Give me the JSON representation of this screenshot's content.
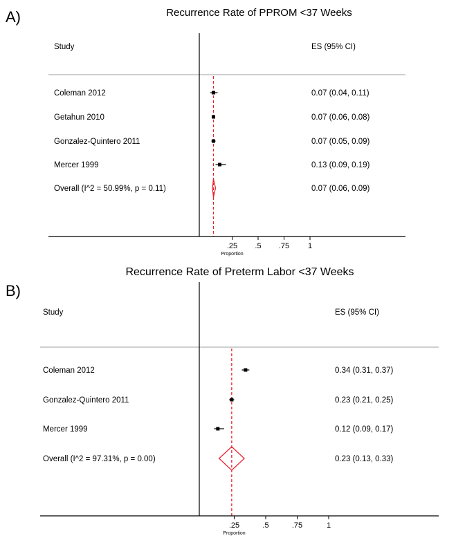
{
  "chart_data": [
    {
      "type": "forest",
      "panel_label": "A)",
      "title": "Recurrence Rate of PPROM <37 Weeks",
      "study_header": "Study",
      "es_header": "ES (95% CI)",
      "xlabel": "Proportion",
      "xticks": [
        ".25",
        ".5",
        ".75",
        "1"
      ],
      "xtick_values": [
        0.25,
        0.5,
        0.75,
        1.0
      ],
      "xlim": [
        -0.05,
        1.05
      ],
      "overall_line": 0.07,
      "studies": [
        {
          "name": "Coleman 2012",
          "es": 0.07,
          "lo": 0.04,
          "hi": 0.11,
          "label": "0.07 (0.04, 0.11)"
        },
        {
          "name": "Getahun 2010",
          "es": 0.07,
          "lo": 0.06,
          "hi": 0.08,
          "label": "0.07 (0.06, 0.08)"
        },
        {
          "name": "Gonzalez-Quintero 2011",
          "es": 0.07,
          "lo": 0.05,
          "hi": 0.09,
          "label": "0.07 (0.05, 0.09)"
        },
        {
          "name": "Mercer 1999",
          "es": 0.13,
          "lo": 0.09,
          "hi": 0.19,
          "label": "0.13 (0.09, 0.19)"
        }
      ],
      "overall": {
        "name": "Overall  (I^2 = 50.99%, p = 0.11)",
        "es": 0.07,
        "lo": 0.06,
        "hi": 0.09,
        "label": "0.07 (0.06, 0.09)"
      },
      "colors": {
        "overall": "#e8202a",
        "marker": "#000000",
        "rule": "#bfbfbf"
      }
    },
    {
      "type": "forest",
      "panel_label": "B)",
      "title": "Recurrence Rate of Preterm Labor <37 Weeks",
      "study_header": "Study",
      "es_header": "ES (95% CI)",
      "xlabel": "Proportion",
      "xticks": [
        ".25",
        ".5",
        ".75",
        "1"
      ],
      "xtick_values": [
        0.25,
        0.5,
        0.75,
        1.0
      ],
      "xlim": [
        -0.05,
        1.05
      ],
      "overall_line": 0.23,
      "studies": [
        {
          "name": "Coleman 2012",
          "es": 0.34,
          "lo": 0.31,
          "hi": 0.37,
          "label": "0.34 (0.31, 0.37)"
        },
        {
          "name": "Gonzalez-Quintero 2011",
          "es": 0.23,
          "lo": 0.21,
          "hi": 0.25,
          "label": "0.23 (0.21, 0.25)"
        },
        {
          "name": "Mercer 1999",
          "es": 0.12,
          "lo": 0.09,
          "hi": 0.17,
          "label": "0.12 (0.09, 0.17)"
        }
      ],
      "overall": {
        "name": "Overall  (I^2 = 97.31%, p = 0.00)",
        "es": 0.23,
        "lo": 0.13,
        "hi": 0.33,
        "label": "0.23 (0.13, 0.33)"
      },
      "colors": {
        "overall": "#e8202a",
        "marker": "#000000",
        "rule": "#bfbfbf"
      }
    }
  ]
}
